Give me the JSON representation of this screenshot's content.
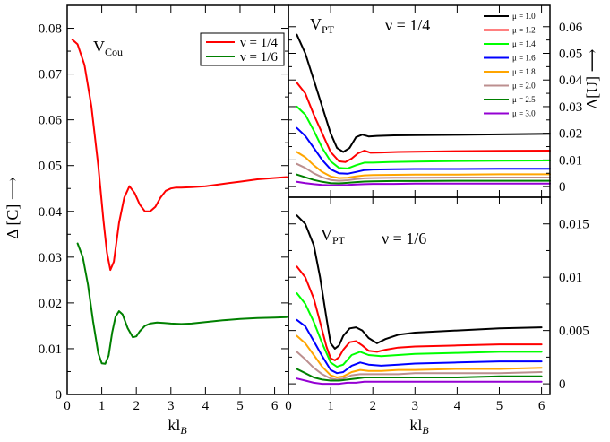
{
  "chart_data": [
    {
      "id": "left",
      "type": "line",
      "title_main": "V",
      "title_sub": "Cou",
      "xlabel_k": "kl",
      "xlabel_sub": "B",
      "ylabel": "Δ [C] ⟶",
      "xlim": [
        0,
        6.4
      ],
      "ylim": [
        0,
        0.085
      ],
      "xticks": [
        "0",
        "1",
        "2",
        "3",
        "4",
        "5",
        "6"
      ],
      "yticks": [
        "0",
        "0.01",
        "0.02",
        "0.03",
        "0.04",
        "0.05",
        "0.06",
        "0.07",
        "0.08"
      ],
      "legend": "top-right",
      "series": [
        {
          "name": "ν = 1/4",
          "color": "#ff0000",
          "x": [
            0.15,
            0.3,
            0.5,
            0.7,
            0.9,
            1.05,
            1.15,
            1.25,
            1.35,
            1.5,
            1.65,
            1.8,
            1.95,
            2.1,
            2.25,
            2.4,
            2.55,
            2.7,
            2.85,
            3.0,
            3.15,
            3.3,
            3.6,
            4.0,
            4.5,
            5.0,
            5.5,
            6.0,
            6.35
          ],
          "y": [
            0.0775,
            0.0765,
            0.072,
            0.063,
            0.05,
            0.038,
            0.031,
            0.0272,
            0.029,
            0.0375,
            0.043,
            0.0455,
            0.044,
            0.0415,
            0.04,
            0.04,
            0.041,
            0.043,
            0.0445,
            0.045,
            0.0452,
            0.0452,
            0.0453,
            0.0455,
            0.046,
            0.0465,
            0.047,
            0.0473,
            0.0475
          ]
        },
        {
          "name": "ν = 1/6",
          "color": "#008000",
          "x": [
            0.3,
            0.45,
            0.6,
            0.75,
            0.9,
            1.0,
            1.1,
            1.2,
            1.3,
            1.4,
            1.5,
            1.6,
            1.75,
            1.9,
            2.0,
            2.1,
            2.25,
            2.4,
            2.6,
            2.8,
            3.0,
            3.3,
            3.6,
            4.0,
            4.5,
            5.0,
            5.5,
            6.0,
            6.35
          ],
          "y": [
            0.033,
            0.03,
            0.024,
            0.016,
            0.009,
            0.0068,
            0.0067,
            0.0085,
            0.0135,
            0.017,
            0.0182,
            0.0175,
            0.0145,
            0.0125,
            0.0127,
            0.0138,
            0.015,
            0.0155,
            0.0157,
            0.0156,
            0.0155,
            0.0154,
            0.0155,
            0.0158,
            0.0162,
            0.0165,
            0.0167,
            0.0168,
            0.0169
          ]
        }
      ]
    },
    {
      "id": "top-right",
      "type": "line",
      "title_main": "V",
      "title_sub": "PT",
      "nu_label": "ν = 1/4",
      "ylabel": "Δ[U] ⟶",
      "xlim": [
        0,
        6.2
      ],
      "ylim": [
        -0.004,
        0.068
      ],
      "yticks": [
        "0",
        "0.01",
        "0.02",
        "0.03",
        "0.04",
        "0.05",
        "0.06"
      ],
      "legend": "top-right",
      "legend_entries": [
        "μ = 1.0",
        "μ = 1.2",
        "μ = 1.4",
        "μ = 1.6",
        "μ = 1.8",
        "μ = 2.0",
        "μ = 2.5",
        "μ = 3.0"
      ],
      "series": [
        {
          "name": "μ = 1.0",
          "color": "#000000",
          "x": [
            0.2,
            0.4,
            0.6,
            0.8,
            1.0,
            1.15,
            1.3,
            1.45,
            1.6,
            1.75,
            1.9,
            2.1,
            2.5,
            3,
            4,
            5,
            6.2
          ],
          "y": [
            0.057,
            0.05,
            0.04,
            0.03,
            0.02,
            0.0145,
            0.013,
            0.0145,
            0.0185,
            0.0195,
            0.0188,
            0.019,
            0.0192,
            0.0193,
            0.0194,
            0.0196,
            0.0198
          ]
        },
        {
          "name": "μ = 1.2",
          "color": "#ff0000",
          "x": [
            0.2,
            0.4,
            0.6,
            0.8,
            1.0,
            1.2,
            1.35,
            1.5,
            1.65,
            1.8,
            1.95,
            2.2,
            2.6,
            3,
            4,
            5,
            6.2
          ],
          "y": [
            0.039,
            0.035,
            0.027,
            0.02,
            0.013,
            0.0095,
            0.0092,
            0.0105,
            0.0125,
            0.0135,
            0.0127,
            0.0128,
            0.013,
            0.0131,
            0.0133,
            0.0134,
            0.0135
          ]
        },
        {
          "name": "μ = 1.4",
          "color": "#00ff00",
          "x": [
            0.2,
            0.4,
            0.6,
            0.8,
            1.0,
            1.2,
            1.4,
            1.6,
            1.8,
            2.0,
            2.4,
            3,
            4,
            5,
            6.2
          ],
          "y": [
            0.03,
            0.027,
            0.021,
            0.0145,
            0.0095,
            0.007,
            0.0068,
            0.008,
            0.009,
            0.009,
            0.0092,
            0.0094,
            0.0096,
            0.0097,
            0.0098
          ]
        },
        {
          "name": "μ = 1.6",
          "color": "#0000ff",
          "x": [
            0.2,
            0.4,
            0.6,
            0.8,
            1.0,
            1.2,
            1.4,
            1.6,
            1.8,
            2.0,
            2.5,
            3,
            4,
            5,
            6.2
          ],
          "y": [
            0.022,
            0.019,
            0.0145,
            0.01,
            0.0065,
            0.005,
            0.0048,
            0.0055,
            0.0062,
            0.0064,
            0.0065,
            0.0066,
            0.0066,
            0.0067,
            0.0067
          ]
        },
        {
          "name": "μ = 1.8",
          "color": "#ffa500",
          "x": [
            0.2,
            0.4,
            0.6,
            0.8,
            1.0,
            1.2,
            1.4,
            1.6,
            1.8,
            2.0,
            2.5,
            3,
            4,
            5,
            6.2
          ],
          "y": [
            0.013,
            0.011,
            0.008,
            0.0055,
            0.0038,
            0.0032,
            0.0033,
            0.0038,
            0.0042,
            0.0043,
            0.0044,
            0.0045,
            0.0045,
            0.0046,
            0.0046
          ]
        },
        {
          "name": "μ = 2.0",
          "color": "#bc8f8f",
          "x": [
            0.2,
            0.4,
            0.6,
            0.8,
            1.0,
            1.2,
            1.4,
            1.6,
            1.8,
            2.0,
            2.5,
            3,
            4,
            5,
            6.2
          ],
          "y": [
            0.0085,
            0.007,
            0.005,
            0.0035,
            0.0025,
            0.0022,
            0.0024,
            0.0028,
            0.0031,
            0.0032,
            0.0033,
            0.0033,
            0.0034,
            0.0034,
            0.0034
          ]
        },
        {
          "name": "μ = 2.5",
          "color": "#008000",
          "x": [
            0.2,
            0.4,
            0.6,
            0.8,
            1.0,
            1.2,
            1.4,
            1.6,
            1.8,
            2.0,
            2.5,
            3,
            4,
            5,
            6.2
          ],
          "y": [
            0.0045,
            0.0035,
            0.0025,
            0.0018,
            0.0013,
            0.0012,
            0.0014,
            0.0017,
            0.0019,
            0.002,
            0.0021,
            0.0021,
            0.0022,
            0.0022,
            0.0022
          ]
        },
        {
          "name": "μ = 3.0",
          "color": "#9400d3",
          "x": [
            0.2,
            0.4,
            0.6,
            0.8,
            1.0,
            1.2,
            1.4,
            1.6,
            1.8,
            2.0,
            2.5,
            3,
            4,
            5,
            6.2
          ],
          "y": [
            0.0018,
            0.0013,
            0.0009,
            0.0006,
            0.0005,
            0.0005,
            0.0006,
            0.0008,
            0.0009,
            0.001,
            0.001,
            0.0011,
            0.0011,
            0.0011,
            0.0011
          ]
        }
      ]
    },
    {
      "id": "bottom-right",
      "type": "line",
      "title_main": "V",
      "title_sub": "PT",
      "nu_label": "ν = 1/6",
      "xlabel_k": "kl",
      "xlabel_sub": "B",
      "xlim": [
        0,
        6.2
      ],
      "ylim": [
        -0.001,
        0.0175
      ],
      "xticks": [
        "0",
        "1",
        "2",
        "3",
        "4",
        "5",
        "6"
      ],
      "yticks": [
        "0",
        "0.005",
        "0.01",
        "0.015"
      ],
      "series": [
        {
          "name": "μ = 1.0",
          "color": "#000000",
          "x": [
            0.2,
            0.4,
            0.6,
            0.75,
            0.9,
            1.0,
            1.1,
            1.2,
            1.3,
            1.45,
            1.6,
            1.75,
            1.9,
            2.1,
            2.3,
            2.6,
            3,
            4,
            5,
            6.0
          ],
          "y": [
            0.0158,
            0.015,
            0.013,
            0.01,
            0.0062,
            0.0038,
            0.0033,
            0.0036,
            0.0045,
            0.0052,
            0.0053,
            0.005,
            0.0043,
            0.0038,
            0.0042,
            0.0046,
            0.0048,
            0.005,
            0.0052,
            0.0053
          ]
        },
        {
          "name": "μ = 1.2",
          "color": "#ff0000",
          "x": [
            0.2,
            0.4,
            0.6,
            0.75,
            0.9,
            1.0,
            1.1,
            1.2,
            1.3,
            1.45,
            1.6,
            1.75,
            1.9,
            2.1,
            2.3,
            2.6,
            3,
            4,
            5,
            6.0
          ],
          "y": [
            0.011,
            0.01,
            0.008,
            0.0058,
            0.0035,
            0.0024,
            0.0022,
            0.0025,
            0.0032,
            0.0039,
            0.004,
            0.0036,
            0.0031,
            0.003,
            0.0032,
            0.0034,
            0.0035,
            0.0036,
            0.0037,
            0.0037
          ]
        },
        {
          "name": "μ = 1.4",
          "color": "#00ff00",
          "x": [
            0.2,
            0.4,
            0.6,
            0.8,
            1.0,
            1.15,
            1.3,
            1.5,
            1.7,
            1.9,
            2.2,
            2.6,
            3,
            4,
            5,
            6.0
          ],
          "y": [
            0.0085,
            0.0075,
            0.0058,
            0.0038,
            0.002,
            0.0016,
            0.0018,
            0.0027,
            0.003,
            0.0027,
            0.0026,
            0.0027,
            0.0028,
            0.0029,
            0.003,
            0.003
          ]
        },
        {
          "name": "μ = 1.6",
          "color": "#0000ff",
          "x": [
            0.2,
            0.4,
            0.6,
            0.8,
            1.0,
            1.15,
            1.3,
            1.5,
            1.7,
            1.9,
            2.2,
            2.6,
            3,
            4,
            5,
            6.0
          ],
          "y": [
            0.006,
            0.0054,
            0.004,
            0.0026,
            0.0013,
            0.001,
            0.0011,
            0.0017,
            0.002,
            0.0018,
            0.0017,
            0.0018,
            0.0019,
            0.002,
            0.0021,
            0.0021
          ]
        },
        {
          "name": "μ = 1.8",
          "color": "#ffa500",
          "x": [
            0.2,
            0.4,
            0.6,
            0.8,
            1.0,
            1.15,
            1.3,
            1.5,
            1.7,
            1.9,
            2.2,
            2.6,
            3,
            4,
            5,
            6.0
          ],
          "y": [
            0.0045,
            0.0038,
            0.0027,
            0.0016,
            0.0008,
            0.0006,
            0.0007,
            0.0011,
            0.0013,
            0.0012,
            0.0012,
            0.0013,
            0.0013,
            0.0014,
            0.0014,
            0.0015
          ]
        },
        {
          "name": "μ = 2.0",
          "color": "#bc8f8f",
          "x": [
            0.2,
            0.4,
            0.6,
            0.8,
            1.0,
            1.15,
            1.3,
            1.5,
            1.7,
            1.9,
            2.2,
            2.6,
            3,
            4,
            5,
            6.0
          ],
          "y": [
            0.003,
            0.0023,
            0.0015,
            0.0009,
            0.0005,
            0.0004,
            0.0005,
            0.0008,
            0.0009,
            0.0009,
            0.0009,
            0.0009,
            0.001,
            0.001,
            0.001,
            0.0011
          ]
        },
        {
          "name": "μ = 2.5",
          "color": "#008000",
          "x": [
            0.2,
            0.4,
            0.6,
            0.8,
            1.0,
            1.2,
            1.4,
            1.6,
            1.8,
            2.0,
            2.5,
            3,
            4,
            5,
            6.0
          ],
          "y": [
            0.0014,
            0.001,
            0.0006,
            0.0004,
            0.0003,
            0.0003,
            0.0004,
            0.0005,
            0.0006,
            0.0006,
            0.0006,
            0.0006,
            0.0006,
            0.0007,
            0.0007
          ]
        },
        {
          "name": "μ = 3.0",
          "color": "#9400d3",
          "x": [
            0.2,
            0.4,
            0.6,
            0.8,
            1.0,
            1.2,
            1.4,
            1.6,
            1.8,
            2.0,
            2.5,
            3,
            4,
            5,
            6.0
          ],
          "y": [
            0.0005,
            0.0003,
            0.0001,
            0.0,
            0.0,
            0.0,
            0.0001,
            0.0001,
            0.0002,
            0.0002,
            0.0002,
            0.0002,
            0.0002,
            0.0002,
            0.0002
          ]
        }
      ]
    }
  ]
}
